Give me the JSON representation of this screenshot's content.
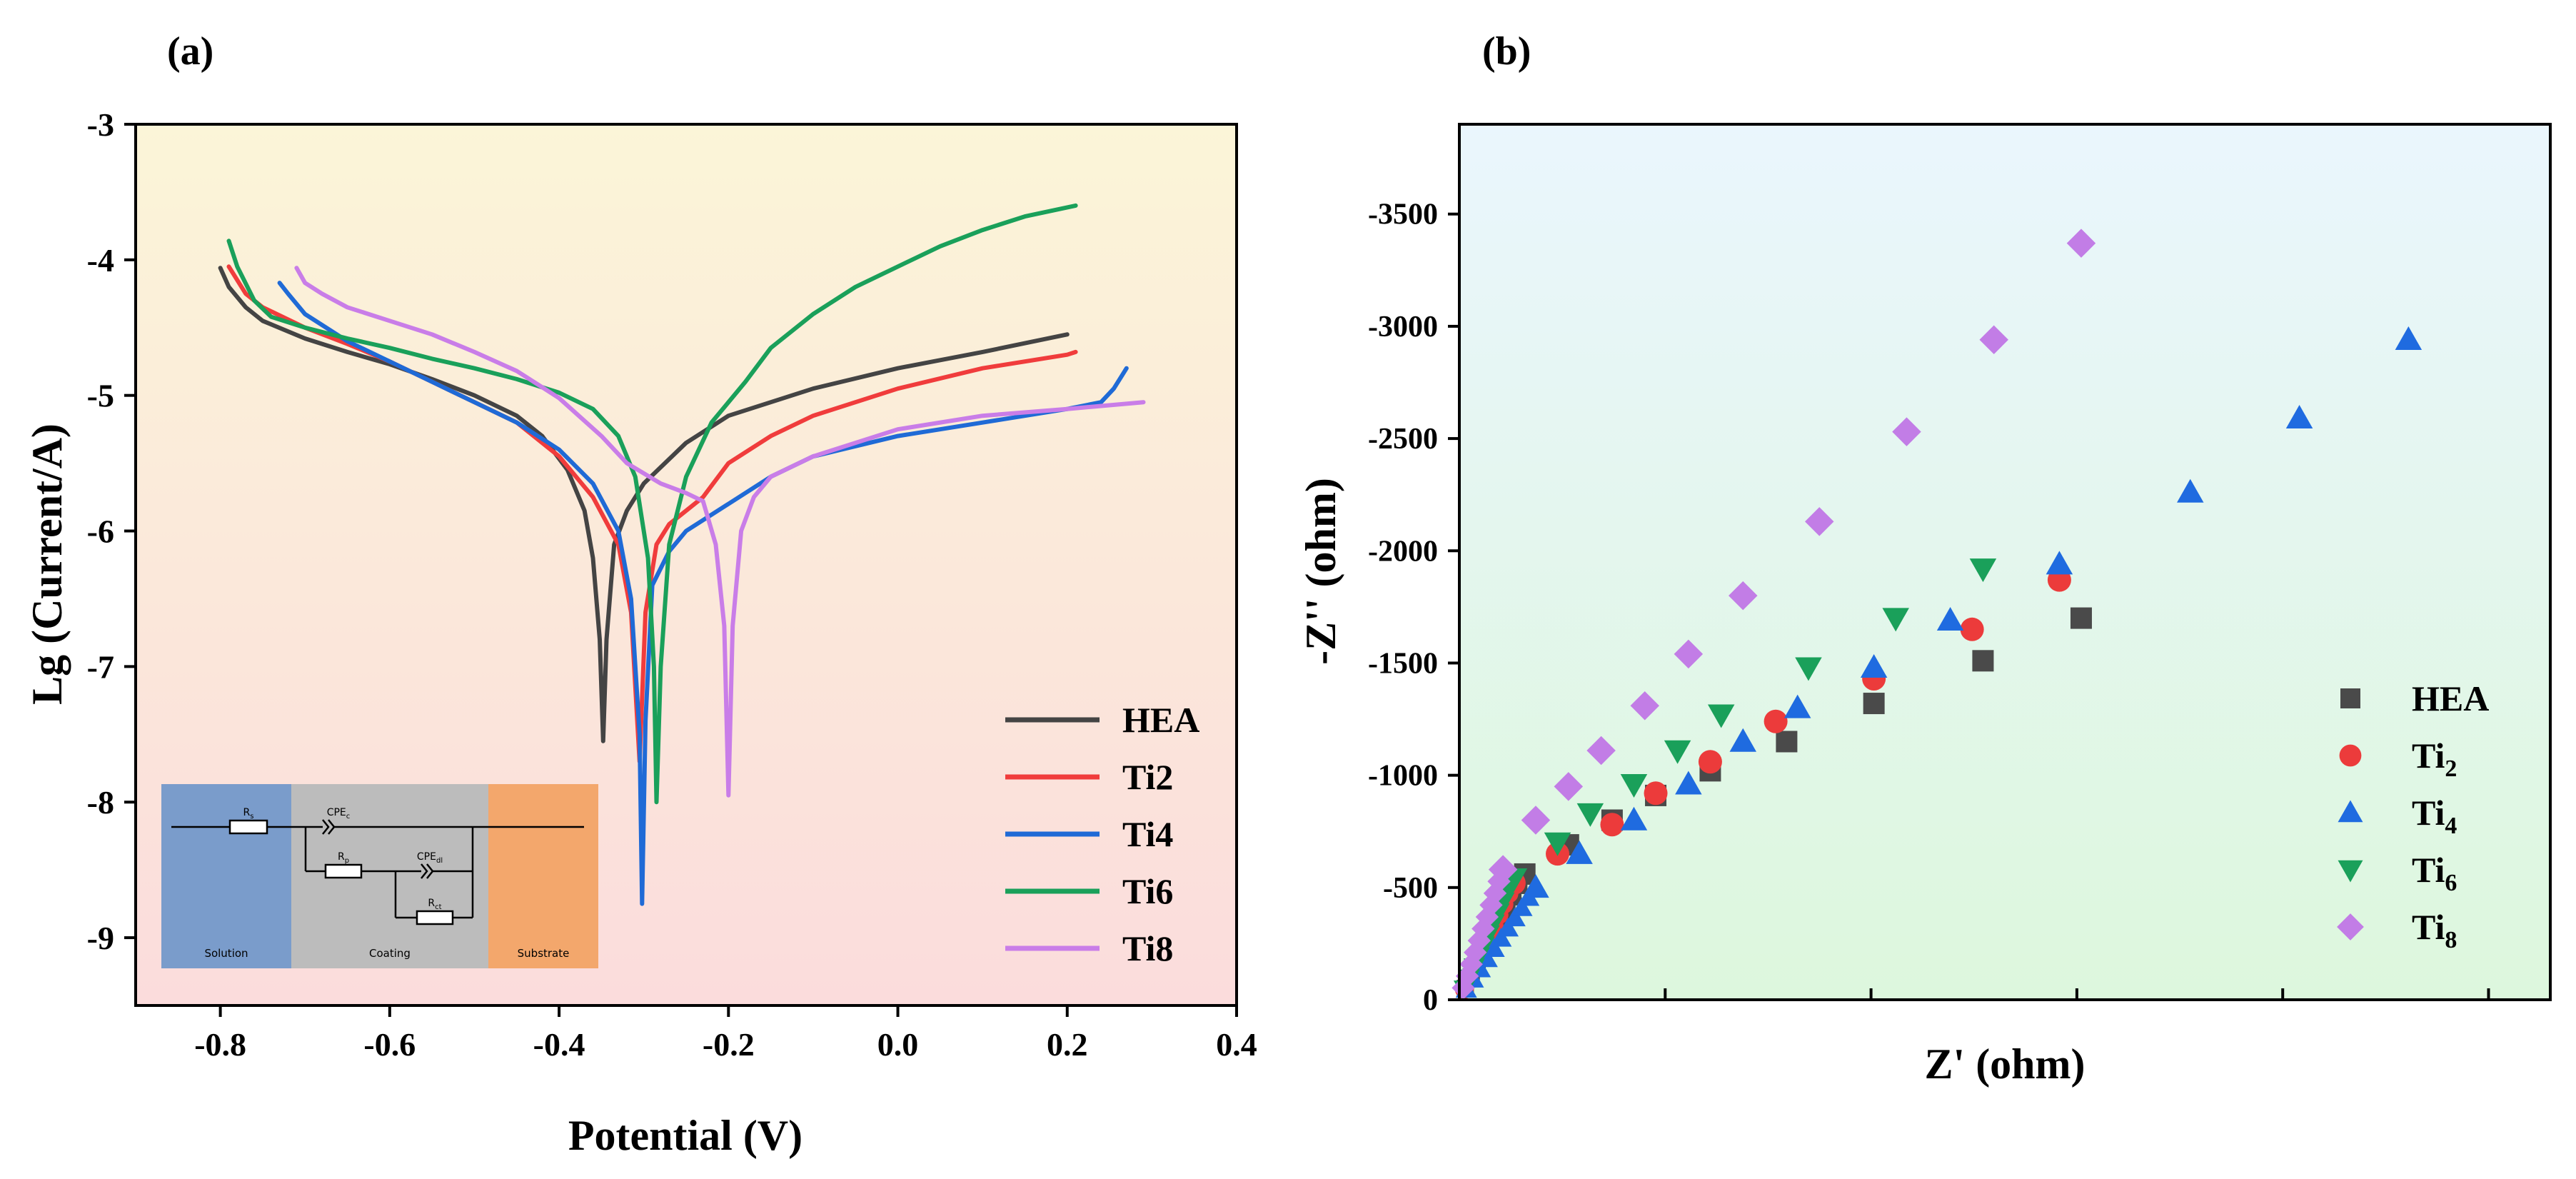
{
  "charts": [
    {
      "panel": "(a)",
      "type": "line",
      "xlabel": "Potential (V)",
      "ylabel": "Lg (Current/A)",
      "xlim": [
        -0.9,
        0.4
      ],
      "ylim": [
        -9.5,
        -3
      ],
      "xticks": [
        -0.8,
        -0.6,
        -0.4,
        -0.2,
        0.0,
        0.2,
        0.4
      ],
      "xtick_labels": [
        "-0.8",
        "-0.6",
        "-0.4",
        "-0.2",
        "0.0",
        "0.2",
        "0.4"
      ],
      "yticks": [
        -3,
        -4,
        -5,
        -6,
        -7,
        -8,
        -9
      ],
      "ytick_labels": [
        "-3",
        "-4",
        "-5",
        "-6",
        "-7",
        "-8",
        "-9"
      ],
      "background": "gradient",
      "background_top_color": "#fbf5d8",
      "background_bottom_color": "#fbdcdc",
      "legend_position": "bottom-right",
      "series": [
        {
          "name": "HEA",
          "color": "#444444",
          "points": [
            [
              -0.8,
              -4.06
            ],
            [
              -0.79,
              -4.2
            ],
            [
              -0.77,
              -4.35
            ],
            [
              -0.75,
              -4.45
            ],
            [
              -0.7,
              -4.58
            ],
            [
              -0.65,
              -4.68
            ],
            [
              -0.6,
              -4.77
            ],
            [
              -0.55,
              -4.88
            ],
            [
              -0.5,
              -5.0
            ],
            [
              -0.45,
              -5.15
            ],
            [
              -0.42,
              -5.3
            ],
            [
              -0.39,
              -5.55
            ],
            [
              -0.37,
              -5.85
            ],
            [
              -0.36,
              -6.2
            ],
            [
              -0.352,
              -6.8
            ],
            [
              -0.348,
              -7.55
            ],
            [
              -0.344,
              -6.8
            ],
            [
              -0.335,
              -6.1
            ],
            [
              -0.32,
              -5.85
            ],
            [
              -0.3,
              -5.65
            ],
            [
              -0.25,
              -5.35
            ],
            [
              -0.2,
              -5.15
            ],
            [
              -0.1,
              -4.95
            ],
            [
              0.0,
              -4.8
            ],
            [
              0.1,
              -4.68
            ],
            [
              0.2,
              -4.55
            ]
          ]
        },
        {
          "name": "Ti2",
          "color": "#f03c3c",
          "points": [
            [
              -0.79,
              -4.05
            ],
            [
              -0.77,
              -4.25
            ],
            [
              -0.75,
              -4.35
            ],
            [
              -0.7,
              -4.5
            ],
            [
              -0.65,
              -4.62
            ],
            [
              -0.6,
              -4.75
            ],
            [
              -0.55,
              -4.9
            ],
            [
              -0.5,
              -5.05
            ],
            [
              -0.45,
              -5.2
            ],
            [
              -0.4,
              -5.45
            ],
            [
              -0.36,
              -5.75
            ],
            [
              -0.33,
              -6.1
            ],
            [
              -0.315,
              -6.6
            ],
            [
              -0.305,
              -7.7
            ],
            [
              -0.298,
              -6.6
            ],
            [
              -0.285,
              -6.1
            ],
            [
              -0.27,
              -5.95
            ],
            [
              -0.25,
              -5.85
            ],
            [
              -0.23,
              -5.75
            ],
            [
              -0.2,
              -5.5
            ],
            [
              -0.15,
              -5.3
            ],
            [
              -0.1,
              -5.15
            ],
            [
              0.0,
              -4.95
            ],
            [
              0.1,
              -4.8
            ],
            [
              0.2,
              -4.7
            ],
            [
              0.21,
              -4.68
            ]
          ]
        },
        {
          "name": "Ti4",
          "color": "#1f6ad6",
          "points": [
            [
              -0.73,
              -4.17
            ],
            [
              -0.72,
              -4.25
            ],
            [
              -0.7,
              -4.4
            ],
            [
              -0.65,
              -4.6
            ],
            [
              -0.6,
              -4.75
            ],
            [
              -0.55,
              -4.9
            ],
            [
              -0.5,
              -5.05
            ],
            [
              -0.45,
              -5.2
            ],
            [
              -0.4,
              -5.4
            ],
            [
              -0.36,
              -5.65
            ],
            [
              -0.33,
              -6.0
            ],
            [
              -0.315,
              -6.5
            ],
            [
              -0.305,
              -7.5
            ],
            [
              -0.302,
              -8.75
            ],
            [
              -0.298,
              -7.4
            ],
            [
              -0.29,
              -6.4
            ],
            [
              -0.27,
              -6.15
            ],
            [
              -0.25,
              -6.0
            ],
            [
              -0.2,
              -5.8
            ],
            [
              -0.15,
              -5.6
            ],
            [
              -0.1,
              -5.45
            ],
            [
              0.0,
              -5.3
            ],
            [
              0.1,
              -5.2
            ],
            [
              0.2,
              -5.1
            ],
            [
              0.24,
              -5.05
            ],
            [
              0.255,
              -4.95
            ],
            [
              0.265,
              -4.85
            ],
            [
              0.27,
              -4.8
            ]
          ]
        },
        {
          "name": "Ti6",
          "color": "#1aa05a",
          "points": [
            [
              -0.79,
              -3.86
            ],
            [
              -0.78,
              -4.05
            ],
            [
              -0.76,
              -4.3
            ],
            [
              -0.74,
              -4.42
            ],
            [
              -0.7,
              -4.5
            ],
            [
              -0.65,
              -4.58
            ],
            [
              -0.6,
              -4.65
            ],
            [
              -0.55,
              -4.73
            ],
            [
              -0.5,
              -4.8
            ],
            [
              -0.45,
              -4.88
            ],
            [
              -0.4,
              -4.98
            ],
            [
              -0.36,
              -5.1
            ],
            [
              -0.33,
              -5.3
            ],
            [
              -0.31,
              -5.6
            ],
            [
              -0.295,
              -6.2
            ],
            [
              -0.288,
              -7.0
            ],
            [
              -0.285,
              -8.0
            ],
            [
              -0.28,
              -7.0
            ],
            [
              -0.27,
              -6.1
            ],
            [
              -0.25,
              -5.6
            ],
            [
              -0.22,
              -5.2
            ],
            [
              -0.18,
              -4.9
            ],
            [
              -0.15,
              -4.65
            ],
            [
              -0.1,
              -4.4
            ],
            [
              -0.05,
              -4.2
            ],
            [
              0.0,
              -4.05
            ],
            [
              0.05,
              -3.9
            ],
            [
              0.1,
              -3.78
            ],
            [
              0.15,
              -3.68
            ],
            [
              0.21,
              -3.6
            ]
          ]
        },
        {
          "name": "Ti8",
          "color": "#c97de8",
          "points": [
            [
              -0.71,
              -4.06
            ],
            [
              -0.7,
              -4.17
            ],
            [
              -0.68,
              -4.25
            ],
            [
              -0.65,
              -4.35
            ],
            [
              -0.6,
              -4.45
            ],
            [
              -0.55,
              -4.55
            ],
            [
              -0.5,
              -4.68
            ],
            [
              -0.45,
              -4.82
            ],
            [
              -0.4,
              -5.02
            ],
            [
              -0.35,
              -5.3
            ],
            [
              -0.32,
              -5.5
            ],
            [
              -0.28,
              -5.65
            ],
            [
              -0.25,
              -5.72
            ],
            [
              -0.23,
              -5.78
            ],
            [
              -0.215,
              -6.1
            ],
            [
              -0.205,
              -6.7
            ],
            [
              -0.2,
              -7.95
            ],
            [
              -0.195,
              -6.7
            ],
            [
              -0.185,
              -6.0
            ],
            [
              -0.17,
              -5.75
            ],
            [
              -0.15,
              -5.6
            ],
            [
              -0.1,
              -5.45
            ],
            [
              0.0,
              -5.25
            ],
            [
              0.1,
              -5.15
            ],
            [
              0.2,
              -5.1
            ],
            [
              0.29,
              -5.05
            ]
          ]
        }
      ],
      "inset": {
        "sections": [
          {
            "label": "Solution",
            "color": "#7a9ccb"
          },
          {
            "label": "Coating",
            "color": "#bcbcbc"
          },
          {
            "label": "Substrate",
            "color": "#f3a76c"
          }
        ],
        "components": [
          "R",
          "CPE",
          "R",
          "CPE",
          "R"
        ],
        "subscripts": [
          "s",
          "c",
          "p",
          "dl",
          "ct"
        ]
      }
    },
    {
      "panel": "(b)",
      "type": "scatter",
      "xlabel": "Z' (ohm)",
      "ylabel": "-Z'' (ohm)",
      "xlim": [
        0,
        1
      ],
      "ylim": [
        0,
        -3900
      ],
      "yticks": [
        0,
        -500,
        -1000,
        -1500,
        -2000,
        -2500,
        -3000,
        -3500
      ],
      "ytick_labels": [
        "0",
        "-500",
        "-1000",
        "-1500",
        "-2000",
        "-2500",
        "-3000",
        "-3500"
      ],
      "xticks_count": 5,
      "background": "gradient",
      "background_top_color": "#eaf6fd",
      "background_bottom_color": "#ddf7dd",
      "legend_position": "bottom-right",
      "series": [
        {
          "name": "HEA",
          "subscript": "",
          "marker": "square",
          "color": "#4a4a4a",
          "points": [
            [
              0.06,
              -560
            ],
            [
              0.1,
              -690
            ],
            [
              0.14,
              -800
            ],
            [
              0.18,
              -910
            ],
            [
              0.23,
              -1020
            ],
            [
              0.3,
              -1150
            ],
            [
              0.38,
              -1320
            ],
            [
              0.48,
              -1510
            ],
            [
              0.57,
              -1700
            ]
          ]
        },
        {
          "name": "Ti",
          "subscript": "2",
          "marker": "circle",
          "color": "#ec3b3b",
          "points": [
            [
              0.05,
              -520
            ],
            [
              0.09,
              -650
            ],
            [
              0.14,
              -780
            ],
            [
              0.18,
              -920
            ],
            [
              0.23,
              -1060
            ],
            [
              0.29,
              -1240
            ],
            [
              0.38,
              -1430
            ],
            [
              0.47,
              -1650
            ],
            [
              0.55,
              -1870
            ]
          ]
        },
        {
          "name": "Ti",
          "subscript": "4",
          "marker": "triangle-up",
          "color": "#1f6be0",
          "points": [
            [
              0.07,
              -500
            ],
            [
              0.11,
              -650
            ],
            [
              0.16,
              -800
            ],
            [
              0.21,
              -960
            ],
            [
              0.26,
              -1150
            ],
            [
              0.31,
              -1300
            ],
            [
              0.38,
              -1480
            ],
            [
              0.45,
              -1690
            ],
            [
              0.55,
              -1940
            ],
            [
              0.67,
              -2260
            ],
            [
              0.77,
              -2590
            ],
            [
              0.87,
              -2940
            ]
          ]
        },
        {
          "name": "Ti",
          "subscript": "6",
          "marker": "triangle-down",
          "color": "#1aa05a",
          "points": [
            [
              0.05,
              -540
            ],
            [
              0.09,
              -700
            ],
            [
              0.12,
              -830
            ],
            [
              0.16,
              -960
            ],
            [
              0.2,
              -1110
            ],
            [
              0.24,
              -1270
            ],
            [
              0.32,
              -1480
            ],
            [
              0.4,
              -1700
            ],
            [
              0.48,
              -1920
            ]
          ]
        },
        {
          "name": "Ti",
          "subscript": "8",
          "marker": "diamond",
          "color": "#c27de6",
          "points": [
            [
              0.04,
              -580
            ],
            [
              0.07,
              -800
            ],
            [
              0.1,
              -950
            ],
            [
              0.13,
              -1110
            ],
            [
              0.17,
              -1310
            ],
            [
              0.21,
              -1540
            ],
            [
              0.26,
              -1800
            ],
            [
              0.33,
              -2130
            ],
            [
              0.41,
              -2530
            ],
            [
              0.49,
              -2940
            ],
            [
              0.57,
              -3370
            ]
          ]
        }
      ]
    }
  ]
}
